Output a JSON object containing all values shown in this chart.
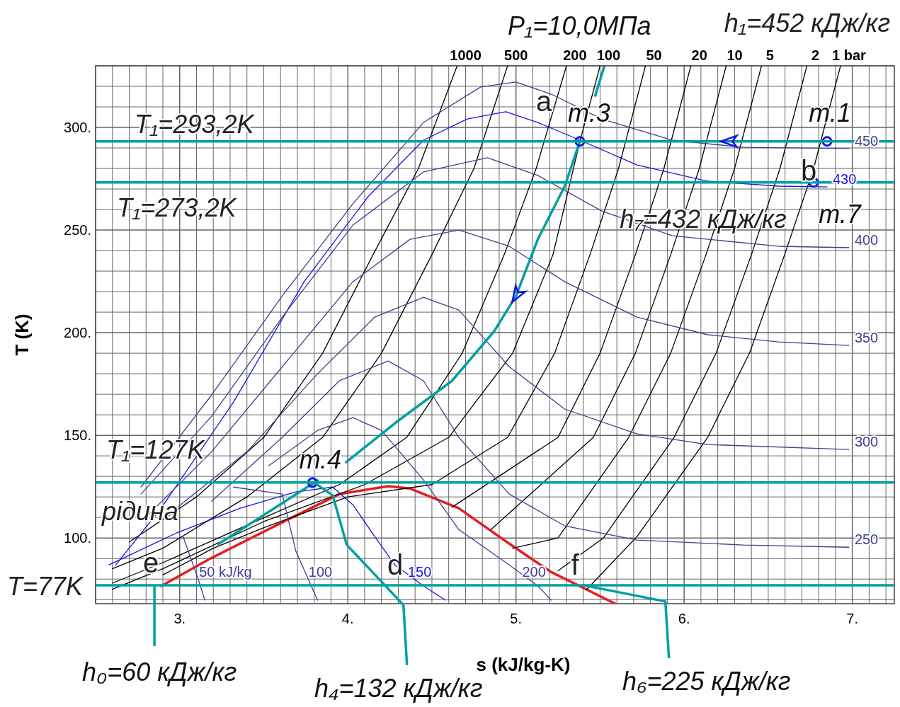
{
  "chart_data": {
    "type": "line",
    "xlabel": "s (kJ/kg-K)",
    "ylabel": "T (K)",
    "xlim": [
      2.5,
      7.25
    ],
    "ylim": [
      68,
      330
    ],
    "grid": true,
    "marker": "none",
    "xticks": [
      {
        "value": 2.5,
        "label": null
      },
      {
        "value": 2.6,
        "label": null
      },
      {
        "value": 2.7,
        "label": null
      },
      {
        "value": 2.8,
        "label": null
      },
      {
        "value": 2.9,
        "label": null
      },
      {
        "value": 3,
        "label": "3."
      },
      {
        "value": 3.1,
        "label": null
      },
      {
        "value": 3.2,
        "label": null
      },
      {
        "value": 3.3,
        "label": null
      },
      {
        "value": 3.4,
        "label": null
      },
      {
        "value": 3.5,
        "label": null
      },
      {
        "value": 3.6,
        "label": null
      },
      {
        "value": 3.7,
        "label": null
      },
      {
        "value": 3.8,
        "label": null
      },
      {
        "value": 3.9,
        "label": null
      },
      {
        "value": 4,
        "label": "4."
      },
      {
        "value": 4.1,
        "label": null
      },
      {
        "value": 4.2,
        "label": null
      },
      {
        "value": 4.3,
        "label": null
      },
      {
        "value": 4.4,
        "label": null
      },
      {
        "value": 4.5,
        "label": null
      },
      {
        "value": 4.6,
        "label": null
      },
      {
        "value": 4.7,
        "label": null
      },
      {
        "value": 4.8,
        "label": null
      },
      {
        "value": 4.9,
        "label": null
      },
      {
        "value": 5,
        "label": "5."
      },
      {
        "value": 5.1,
        "label": null
      },
      {
        "value": 5.2,
        "label": null
      },
      {
        "value": 5.3,
        "label": null
      },
      {
        "value": 5.4,
        "label": null
      },
      {
        "value": 5.5,
        "label": null
      },
      {
        "value": 5.6,
        "label": null
      },
      {
        "value": 5.7,
        "label": null
      },
      {
        "value": 5.8,
        "label": null
      },
      {
        "value": 5.9,
        "label": null
      },
      {
        "value": 6,
        "label": "6."
      },
      {
        "value": 6.1,
        "label": null
      },
      {
        "value": 6.2,
        "label": null
      },
      {
        "value": 6.3,
        "label": null
      },
      {
        "value": 6.4,
        "label": null
      },
      {
        "value": 6.5,
        "label": null
      },
      {
        "value": 6.6,
        "label": null
      },
      {
        "value": 6.7,
        "label": null
      },
      {
        "value": 6.8,
        "label": null
      },
      {
        "value": 6.9,
        "label": null
      },
      {
        "value": 7,
        "label": "7."
      },
      {
        "value": 7.1,
        "label": null
      },
      {
        "value": 7.2,
        "label": null
      }
    ],
    "yticks": [
      {
        "value": 70,
        "label": null
      },
      {
        "value": 80,
        "label": null
      },
      {
        "value": 90,
        "label": null
      },
      {
        "value": 100,
        "label": "100."
      },
      {
        "value": 110,
        "label": null
      },
      {
        "value": 120,
        "label": null
      },
      {
        "value": 130,
        "label": null
      },
      {
        "value": 140,
        "label": null
      },
      {
        "value": 150,
        "label": "150."
      },
      {
        "value": 160,
        "label": null
      },
      {
        "value": 170,
        "label": null
      },
      {
        "value": 180,
        "label": null
      },
      {
        "value": 190,
        "label": null
      },
      {
        "value": 200,
        "label": "200."
      },
      {
        "value": 210,
        "label": null
      },
      {
        "value": 220,
        "label": null
      },
      {
        "value": 230,
        "label": null
      },
      {
        "value": 240,
        "label": null
      },
      {
        "value": 250,
        "label": "250."
      },
      {
        "value": 260,
        "label": null
      },
      {
        "value": 270,
        "label": null
      },
      {
        "value": 280,
        "label": null
      },
      {
        "value": 290,
        "label": null
      },
      {
        "value": 300,
        "label": "300."
      },
      {
        "value": 310,
        "label": null
      },
      {
        "value": 320,
        "label": null
      },
      {
        "value": 330,
        "label": null
      }
    ],
    "series": [
      {
        "color": "#e02020",
        "x": [
          2.89,
          3.19,
          3.61,
          3.95,
          4.24,
          4.37,
          4.66,
          4.96,
          5.21,
          5.42,
          5.59
        ],
        "values": [
          76.6,
          90.3,
          107.6,
          121.4,
          125.2,
          124.1,
          114.5,
          97.2,
          83.4,
          74.9,
          68
        ]
      },
      {
        "type": "line",
        "name": "1000",
        "color": "#000000",
        "x": [
          2.7,
          3.1,
          3.5,
          3.85,
          4.15,
          4.42,
          4.65
        ],
        "values": [
          98,
          120,
          149,
          190,
          238,
          280,
          330
        ]
      },
      {
        "type": "line",
        "name": "500",
        "color": "#000000",
        "x": [
          2.6,
          2.9,
          3.4,
          3.85,
          4.2,
          4.5,
          4.75,
          4.95
        ],
        "values": [
          85,
          95,
          120,
          149,
          190,
          238,
          280,
          330
        ]
      },
      {
        "type": "line",
        "name": "200",
        "color": "#000000",
        "x": [
          2.6,
          2.9,
          3.45,
          3.95,
          4.35,
          4.68,
          4.93,
          5.12,
          5.3
        ],
        "values": [
          78,
          88,
          108,
          126,
          149,
          190,
          238,
          280,
          330
        ]
      },
      {
        "type": "line",
        "name": "100",
        "color": "#000000",
        "x": [
          2.6,
          2.9,
          3.5,
          4.1,
          4.6,
          4.98,
          5.22,
          5.38,
          5.5
        ],
        "values": [
          75,
          85,
          108,
          126,
          149,
          190,
          238,
          293.2,
          330
        ]
      },
      {
        "type": "line",
        "name": "50",
        "color": "#000000",
        "x": [
          2.9,
          3.2,
          3.5,
          4.0,
          4.5,
          4.95,
          5.23,
          5.44,
          5.61,
          5.77
        ],
        "values": [
          82,
          95,
          105,
          120,
          126,
          149,
          190,
          238,
          280,
          330
        ]
      },
      {
        "type": "line",
        "name": "20",
        "color": "#000000",
        "x": [
          4.62,
          5.25,
          5.5,
          5.71,
          5.88,
          6.04
        ],
        "values": [
          115,
          149,
          190,
          238,
          280,
          330
        ]
      },
      {
        "type": "line",
        "name": "10",
        "color": "#000000",
        "x": [
          4.85,
          5.46,
          5.71,
          5.92,
          6.09,
          6.25
        ],
        "values": [
          104,
          149,
          190,
          238,
          280,
          330
        ]
      },
      {
        "type": "line",
        "name": "5",
        "color": "#000000",
        "x": [
          4.98,
          5.25,
          5.67,
          5.92,
          6.13,
          6.3,
          6.46
        ],
        "values": [
          95,
          100,
          149,
          190,
          238,
          280,
          330
        ]
      },
      {
        "type": "line",
        "name": "2",
        "color": "#000000",
        "x": [
          5.25,
          5.52,
          5.94,
          6.19,
          6.4,
          6.57,
          6.73
        ],
        "values": [
          84,
          100,
          149,
          190,
          238,
          280,
          330
        ]
      },
      {
        "type": "line",
        "name": "1 bar",
        "color": "#000000",
        "x": [
          5.42,
          5.72,
          6.14,
          6.39,
          6.6,
          6.77,
          6.93
        ],
        "values": [
          74.9,
          100.7,
          149,
          190.3,
          238.6,
          280,
          330
        ]
      },
      {
        "type": "line",
        "name": "450",
        "color": "#404090",
        "x": [
          2.77,
          3.19,
          3.61,
          4.03,
          4.45,
          4.79,
          5.0,
          5.21,
          5.51,
          5.93,
          6.35,
          6.98
        ],
        "values": [
          124.8,
          169.7,
          217.9,
          262.8,
          302.4,
          319.7,
          322.1,
          316.2,
          304.1,
          293.8,
          290.3,
          289.7
        ]
      },
      {
        "type": "line",
        "name": "430",
        "color": "#1515e0",
        "x": [
          2.62,
          2.89,
          3.32,
          3.74,
          4.12,
          4.45,
          4.71,
          4.94,
          5.13,
          5.38,
          5.72,
          6.14,
          6.56,
          6.85
        ],
        "values": [
          86.9,
          114.5,
          166.2,
          224.8,
          266.2,
          293.8,
          304.1,
          307.6,
          302.4,
          293.8,
          281.7,
          273.8,
          271.4,
          271.0
        ]
      },
      {
        "type": "line",
        "name": "400",
        "color": "#404090",
        "x": [
          2.77,
          3.19,
          3.61,
          4.03,
          4.45,
          4.83,
          5.13,
          5.51,
          5.93,
          6.56,
          6.98
        ],
        "values": [
          121.4,
          159.3,
          207.6,
          252.4,
          278.3,
          285.2,
          276.6,
          259.3,
          247.2,
          242.1,
          241.4
        ]
      },
      {
        "type": "line",
        "name": "350",
        "color": "#404090",
        "x": [
          2.81,
          3.19,
          3.61,
          4.03,
          4.37,
          4.66,
          4.96,
          5.29,
          5.72,
          6.14,
          6.56,
          6.98
        ],
        "values": [
          111,
          142,
          183.4,
          224.8,
          245.5,
          250,
          242.1,
          224.8,
          207.6,
          199,
          195.5,
          193.8
        ]
      },
      {
        "type": "line",
        "name": "300",
        "color": "#404090",
        "x": [
          2.98,
          3.4,
          3.82,
          4.16,
          4.45,
          4.66,
          4.96,
          5.29,
          5.72,
          6.14,
          6.98
        ],
        "values": [
          114.5,
          142,
          180,
          207.6,
          217.2,
          211,
          183.4,
          162.8,
          150.7,
          145.5,
          143.1
        ]
      },
      {
        "type": "line",
        "name": "250",
        "color": "#404090",
        "x": [
          3.19,
          3.61,
          3.95,
          4.24,
          4.45,
          4.66,
          4.96,
          5.29,
          5.72,
          6.35,
          6.98
        ],
        "values": [
          117.9,
          149,
          176.6,
          186.2,
          176.6,
          149,
          121.4,
          105.9,
          99,
          96.6,
          95.5
        ]
      },
      {
        "type": "line",
        "name": "200",
        "color": "#404090",
        "x": [
          3.53,
          3.82,
          4.03,
          4.2,
          4.45,
          4.66,
          4.96,
          5.13,
          5.21
        ],
        "values": [
          135.2,
          152.4,
          158.6,
          152.4,
          128.3,
          104.1,
          86.9,
          76.6,
          69.7
        ]
      },
      {
        "type": "line",
        "name": "150",
        "color": "#1515e0",
        "x": [
          2.58,
          2.98,
          3.36,
          3.69,
          3.91,
          4.03,
          4.16,
          4.28,
          4.45,
          4.58
        ],
        "values": [
          86.9,
          102.4,
          114.5,
          122.4,
          124.8,
          116.2,
          100.7,
          86.9,
          76.6,
          69.7
        ]
      },
      {
        "type": "line",
        "name": "100",
        "color": "#404090",
        "x": [
          3.32,
          3.61,
          3.69,
          3.82
        ],
        "values": [
          124.8,
          121.4,
          93.8,
          69.7
        ]
      },
      {
        "type": "line",
        "name": "50 kJ/kg",
        "color": "#404090",
        "x": [
          3.02,
          3.11,
          3.15
        ],
        "values": [
          100.7,
          80,
          69.7
        ]
      },
      {
        "type": "line",
        "color": "#00a0a0",
        "x": [
          5.38,
          5.29,
          5.13,
          5.0,
          4.87,
          4.62,
          4.28,
          3.99
        ],
        "values": [
          293.2,
          271.4,
          245.5,
          217.9,
          200.7,
          176.6,
          155.9,
          136.9
        ]
      },
      {
        "type": "line",
        "color": "#00a0a0",
        "x": [
          3.82,
          3.23
        ],
        "values": [
          128,
          97
        ]
      },
      {
        "type": "scatter",
        "marker": "circle",
        "color": "#1515e0",
        "x": [
          6.85,
          5.38,
          6.77,
          3.79
        ],
        "values": [
          293.2,
          293.2,
          273.2,
          127
        ]
      }
    ],
    "ref_lines": [
      {
        "axis": "y",
        "value": 293.2,
        "label": "T₁=293,2K",
        "color": "#00a0a0"
      },
      {
        "axis": "y",
        "value": 273.2,
        "label": "T₁=273,2K",
        "color": "#00a0a0"
      },
      {
        "axis": "y",
        "value": 127,
        "label": "T₁=127K",
        "color": "#00a0a0"
      },
      {
        "axis": "y",
        "value": 77,
        "label": "T=77K",
        "color": "#00a0a0"
      }
    ],
    "annotations": [
      "a",
      "b",
      "d",
      "e",
      "f",
      {
        "text": "т.1",
        "x": 6.85,
        "y": 293.2
      },
      {
        "text": "т.3",
        "x": 5.38,
        "y": 293.2
      },
      {
        "text": "т.4",
        "x": 3.79,
        "y": 127
      },
      {
        "text": "т.7",
        "x": 6.77,
        "y": 273.2
      },
      {
        "text": "P₁=10,0МПа",
        "x": 5.47,
        "y": 315
      },
      {
        "text": "h₀=60 кДж/кг",
        "x": 2.85,
        "y": 77
      },
      {
        "text": "h₄=132 кДж/кг",
        "x": 3.8,
        "y": 127
      },
      {
        "text": "h₆=225 кДж/кг",
        "x": 5.4,
        "y": 77
      },
      "h₁=452 кДж/кг",
      "h₇=432 кДж/кг",
      "рідина"
    ]
  }
}
